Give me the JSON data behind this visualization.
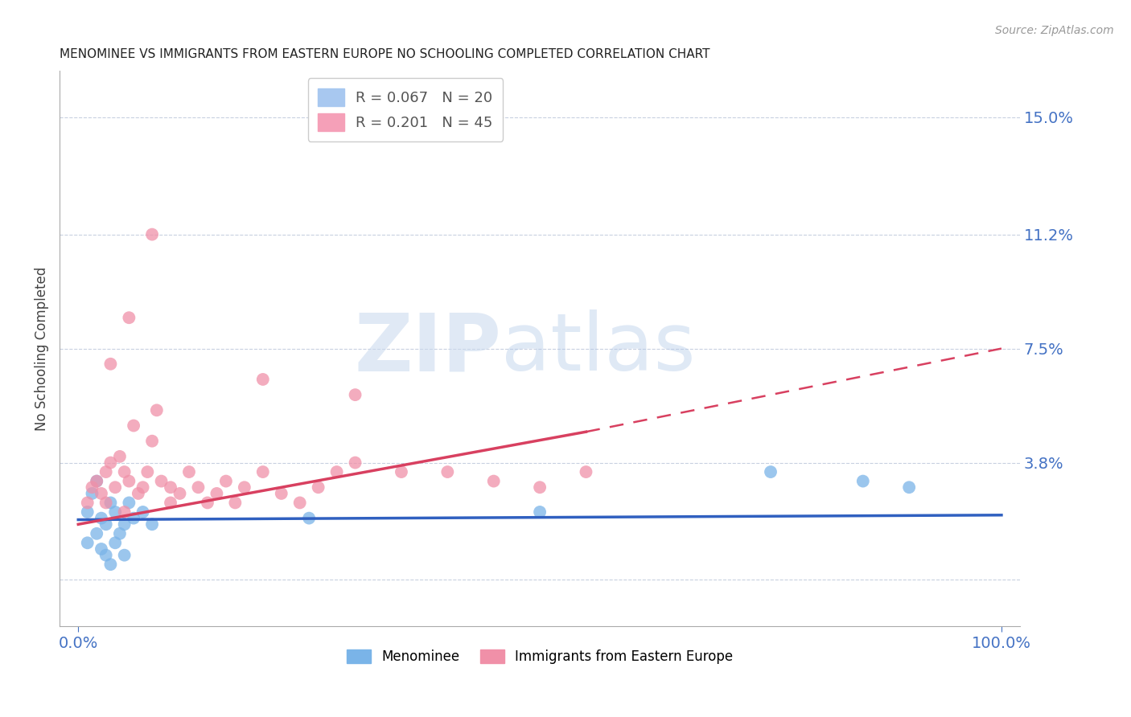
{
  "title": "MENOMINEE VS IMMIGRANTS FROM EASTERN EUROPE NO SCHOOLING COMPLETED CORRELATION CHART",
  "source_text": "Source: ZipAtlas.com",
  "ylabel": "No Schooling Completed",
  "xlim": [
    -2,
    102
  ],
  "ylim": [
    -1.5,
    16.5
  ],
  "yticks": [
    0.0,
    3.8,
    7.5,
    11.2,
    15.0
  ],
  "xtick_labels": [
    "0.0%",
    "100.0%"
  ],
  "ytick_labels": [
    "",
    "3.8%",
    "7.5%",
    "11.2%",
    "15.0%"
  ],
  "series1_label": "Menominee",
  "series2_label": "Immigrants from Eastern Europe",
  "series1_color": "#7ab4e8",
  "series2_color": "#f090a8",
  "trend1_color": "#3060c0",
  "trend2_color": "#d84060",
  "watermark_zip": "ZIP",
  "watermark_atlas": "atlas",
  "blue_scatter_x": [
    1.0,
    1.5,
    2.0,
    2.5,
    3.0,
    3.5,
    4.0,
    4.5,
    5.0,
    5.5,
    1.0,
    2.0,
    2.5,
    3.0,
    3.5,
    4.0,
    5.0,
    6.0,
    7.0,
    8.0,
    25.0,
    50.0,
    75.0,
    85.0,
    90.0
  ],
  "blue_scatter_y": [
    2.2,
    2.8,
    3.2,
    2.0,
    1.8,
    2.5,
    2.2,
    1.5,
    1.8,
    2.5,
    1.2,
    1.5,
    1.0,
    0.8,
    0.5,
    1.2,
    0.8,
    2.0,
    2.2,
    1.8,
    2.0,
    2.2,
    3.5,
    3.2,
    3.0
  ],
  "pink_scatter_x": [
    1.0,
    1.5,
    2.0,
    2.5,
    3.0,
    3.0,
    3.5,
    4.0,
    4.5,
    5.0,
    5.0,
    5.5,
    6.0,
    6.5,
    7.0,
    7.5,
    8.0,
    8.5,
    9.0,
    10.0,
    10.0,
    11.0,
    12.0,
    13.0,
    14.0,
    15.0,
    16.0,
    17.0,
    18.0,
    20.0,
    22.0,
    24.0,
    26.0,
    28.0,
    30.0,
    35.0,
    40.0,
    45.0,
    50.0,
    55.0,
    3.5,
    5.5,
    8.0,
    20.0,
    30.0
  ],
  "pink_scatter_y": [
    2.5,
    3.0,
    3.2,
    2.8,
    3.5,
    2.5,
    3.8,
    3.0,
    4.0,
    3.5,
    2.2,
    3.2,
    5.0,
    2.8,
    3.0,
    3.5,
    4.5,
    5.5,
    3.2,
    2.5,
    3.0,
    2.8,
    3.5,
    3.0,
    2.5,
    2.8,
    3.2,
    2.5,
    3.0,
    3.5,
    2.8,
    2.5,
    3.0,
    3.5,
    3.8,
    3.5,
    3.5,
    3.2,
    3.0,
    3.5,
    7.0,
    8.5,
    11.2,
    6.5,
    6.0
  ],
  "blue_trend_x0": 0.0,
  "blue_trend_x1": 100.0,
  "blue_trend_y0": 1.95,
  "blue_trend_y1": 2.1,
  "pink_solid_x0": 0.0,
  "pink_solid_x1": 55.0,
  "pink_solid_y0": 1.8,
  "pink_solid_y1": 4.8,
  "pink_dash_x0": 55.0,
  "pink_dash_x1": 100.0,
  "pink_dash_y0": 4.8,
  "pink_dash_y1": 7.5
}
